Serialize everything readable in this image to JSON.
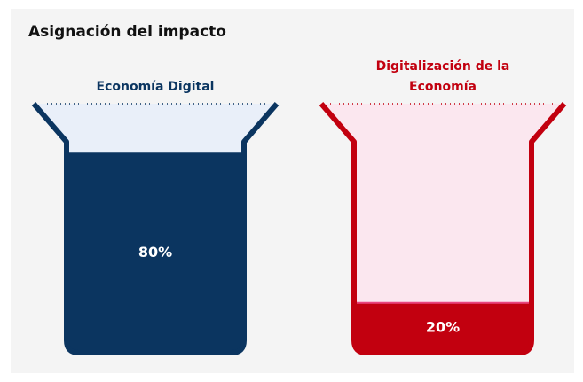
{
  "title": "Asignación del impacto",
  "chart_data": {
    "type": "vessel",
    "categories": [
      "Economía Digital",
      "Digitalización de la Economía"
    ],
    "values": [
      80,
      20
    ],
    "value_labels": [
      "80%",
      "20%"
    ],
    "colors": [
      "#0b3560",
      "#c2000f"
    ],
    "tints": [
      "#e9eff9",
      "#fbe7ef"
    ]
  }
}
